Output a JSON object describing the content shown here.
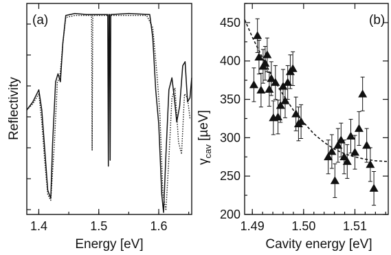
{
  "chart_data": [
    {
      "type": "line",
      "panel_label": "(a)",
      "xlabel": "Energy [eV]",
      "ylabel": "Reflectivity",
      "xlim": [
        1.38,
        1.655
      ],
      "ylim": [
        0,
        1.05
      ],
      "x_ticks": [
        "1.4",
        "1.5",
        "1.6"
      ],
      "y_ticks_labeled": false,
      "series": [
        {
          "style": "solid",
          "x": [
            1.38,
            1.39,
            1.4,
            1.405,
            1.41,
            1.415,
            1.42,
            1.423,
            1.428,
            1.432,
            1.436,
            1.44,
            1.445,
            1.46,
            1.48,
            1.49,
            1.491,
            1.492,
            1.5,
            1.515,
            1.516,
            1.517,
            1.518,
            1.519,
            1.52,
            1.55,
            1.585,
            1.59,
            1.595,
            1.6,
            1.605,
            1.608,
            1.612,
            1.617,
            1.622,
            1.626,
            1.63,
            1.635,
            1.64,
            1.644,
            1.648,
            1.652,
            1.655
          ],
          "y": [
            0.52,
            0.56,
            0.62,
            0.52,
            0.32,
            0.12,
            0.08,
            0.35,
            0.66,
            0.7,
            0.66,
            0.85,
            0.99,
            1.0,
            0.995,
            0.995,
            0.995,
            0.995,
            0.995,
            0.995,
            0.24,
            0.995,
            0.995,
            0.27,
            0.995,
            1.0,
            0.995,
            0.88,
            0.62,
            0.45,
            0.1,
            0.01,
            0.3,
            0.62,
            0.68,
            0.58,
            0.46,
            0.54,
            0.74,
            0.76,
            0.56,
            0.58,
            0.68
          ]
        },
        {
          "style": "dotted",
          "x": [
            1.38,
            1.39,
            1.4,
            1.405,
            1.41,
            1.415,
            1.42,
            1.426,
            1.431,
            1.435,
            1.44,
            1.445,
            1.46,
            1.488,
            1.489,
            1.49,
            1.491,
            1.5,
            1.55,
            1.58,
            1.59,
            1.597,
            1.602,
            1.607,
            1.612,
            1.617,
            1.622,
            1.627,
            1.633,
            1.638,
            1.643,
            1.648,
            1.652,
            1.655
          ],
          "y": [
            0.52,
            0.55,
            0.6,
            0.46,
            0.26,
            0.1,
            0.07,
            0.35,
            0.66,
            0.68,
            0.85,
            0.98,
            0.99,
            0.99,
            0.32,
            0.99,
            0.99,
            0.99,
            0.99,
            0.99,
            0.93,
            0.7,
            0.5,
            0.1,
            0.02,
            0.28,
            0.58,
            0.63,
            0.36,
            0.3,
            0.6,
            0.58,
            0.48,
            0.48
          ]
        }
      ]
    },
    {
      "type": "scatter",
      "panel_label": "(b)",
      "xlabel": "Cavity energy [eV]",
      "ylabel_main": "γ",
      "ylabel_sub": "cav",
      "ylabel_unit": " [µeV]",
      "xlim": [
        1.4885,
        1.5165
      ],
      "ylim": [
        200,
        475
      ],
      "x_ticks": [
        1.49,
        1.5,
        1.51
      ],
      "x_tick_labels": [
        "1.49",
        "1.50",
        "1.51"
      ],
      "y_ticks": [
        200,
        250,
        300,
        350,
        400,
        450
      ],
      "y_tick_labels": [
        "200",
        "250",
        "300",
        "350",
        "400",
        "450"
      ],
      "marker": "filled-triangle",
      "points": [
        {
          "x": 1.4903,
          "y": 369,
          "err": 22
        },
        {
          "x": 1.491,
          "y": 433,
          "err": 22
        },
        {
          "x": 1.4913,
          "y": 405,
          "err": 22
        },
        {
          "x": 1.4917,
          "y": 362,
          "err": 22
        },
        {
          "x": 1.4921,
          "y": 393,
          "err": 22
        },
        {
          "x": 1.4925,
          "y": 397,
          "err": 22
        },
        {
          "x": 1.4929,
          "y": 408,
          "err": 22
        },
        {
          "x": 1.4933,
          "y": 363,
          "err": 22
        },
        {
          "x": 1.4937,
          "y": 377,
          "err": 22
        },
        {
          "x": 1.4941,
          "y": 326,
          "err": 22
        },
        {
          "x": 1.4945,
          "y": 372,
          "err": 22
        },
        {
          "x": 1.495,
          "y": 327,
          "err": 22
        },
        {
          "x": 1.4955,
          "y": 342,
          "err": 22
        },
        {
          "x": 1.496,
          "y": 367,
          "err": 22
        },
        {
          "x": 1.4964,
          "y": 348,
          "err": 22
        },
        {
          "x": 1.4969,
          "y": 372,
          "err": 22
        },
        {
          "x": 1.4974,
          "y": 386,
          "err": 22
        },
        {
          "x": 1.4979,
          "y": 390,
          "err": 22
        },
        {
          "x": 1.4985,
          "y": 331,
          "err": 22
        },
        {
          "x": 1.499,
          "y": 318,
          "err": 22
        },
        {
          "x": 1.4995,
          "y": 321,
          "err": 22
        },
        {
          "x": 1.5048,
          "y": 275,
          "err": 22
        },
        {
          "x": 1.5055,
          "y": 282,
          "err": 22
        },
        {
          "x": 1.5061,
          "y": 244,
          "err": 22
        },
        {
          "x": 1.5067,
          "y": 290,
          "err": 22
        },
        {
          "x": 1.5073,
          "y": 297,
          "err": 22
        },
        {
          "x": 1.5079,
          "y": 275,
          "err": 22
        },
        {
          "x": 1.5085,
          "y": 269,
          "err": 22
        },
        {
          "x": 1.5092,
          "y": 302,
          "err": 22
        },
        {
          "x": 1.51,
          "y": 281,
          "err": 22
        },
        {
          "x": 1.5108,
          "y": 312,
          "err": 22
        },
        {
          "x": 1.5115,
          "y": 357,
          "err": 22
        },
        {
          "x": 1.5123,
          "y": 290,
          "err": 22
        },
        {
          "x": 1.513,
          "y": 265,
          "err": 22
        },
        {
          "x": 1.5137,
          "y": 234,
          "err": 22
        }
      ],
      "fit_curve": {
        "style": "dashed",
        "x": [
          1.4885,
          1.49,
          1.492,
          1.494,
          1.496,
          1.498,
          1.5,
          1.502,
          1.504,
          1.506,
          1.508,
          1.51,
          1.512,
          1.514,
          1.5165
        ],
        "y": [
          454,
          431,
          404,
          378,
          356,
          336,
          320,
          305,
          294,
          285,
          279,
          275,
          272,
          270,
          269
        ]
      }
    }
  ]
}
